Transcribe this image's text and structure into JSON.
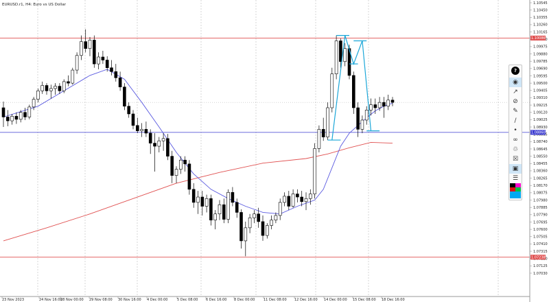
{
  "window": {
    "symbol_caption": "EURUSD.r1, H4:  Euro vs US Dollar"
  },
  "levels": [
    {
      "name": "upper-resistance",
      "price": 1.10086,
      "label": "1.10086",
      "color": "#e05050"
    },
    {
      "name": "mid-support",
      "price": 1.0886,
      "label": "1.08860",
      "color": "#3a3ad0"
    },
    {
      "name": "lower-support",
      "price": 1.07238,
      "label": "1.07238",
      "color": "#e05050"
    }
  ],
  "price_axis": {
    "labels": [
      "1.10545",
      "1.10450",
      "1.10355",
      "1.10260",
      "1.10165",
      "1.10070",
      "1.09975",
      "1.09880",
      "1.09785",
      "1.09690",
      "1.09595",
      "1.09500",
      "1.09405",
      "1.09310",
      "1.09215",
      "1.09120",
      "1.09025",
      "1.08930",
      "1.08835",
      "1.08740",
      "1.08645",
      "1.08550",
      "1.08455",
      "1.08360",
      "1.08265",
      "1.08170",
      "1.08075",
      "1.07980",
      "1.07885",
      "1.07790",
      "1.07695",
      "1.07600",
      "1.07505",
      "1.07410",
      "1.07315",
      "1.07220",
      "1.07125",
      "1.07030"
    ]
  },
  "time_axis": {
    "labels": [
      "23 Nov 2023",
      "24 Nov 16:00",
      "28 Nov 00:00",
      "29 Nov 08:00",
      "30 Nov 16:00",
      "4 Dec 00:00",
      "5 Dec 08:00",
      "6 Dec 16:00",
      "8 Dec 00:00",
      "11 Dec 08:00",
      "12 Dec 16:00",
      "14 Dec 00:00",
      "15 Dec 08:00",
      "18 Dec 16:00"
    ]
  },
  "toolbar": {
    "items": [
      "eye-icon",
      "cursor-icon",
      "no-draw-icon",
      "brush-icon",
      "pencil-icon",
      "dot-icon",
      "link-icon",
      "trash-icon",
      "trash-all-icon",
      "screenshot-icon",
      "clipboard-icon",
      "color-palette-icon"
    ],
    "active": "eye-icon"
  },
  "chart_data": {
    "type": "candlestick",
    "symbol": "EURUSD.r1",
    "timeframe": "H4",
    "y_axis_printed_range": [
      1.0703,
      1.10545
    ],
    "candles": [
      {
        "o": 1.0918,
        "h": 1.0926,
        "l": 1.0893,
        "c": 1.0906
      },
      {
        "o": 1.0906,
        "h": 1.0915,
        "l": 1.0894,
        "c": 1.0901
      },
      {
        "o": 1.0901,
        "h": 1.091,
        "l": 1.0896,
        "c": 1.0907
      },
      {
        "o": 1.0907,
        "h": 1.0912,
        "l": 1.0897,
        "c": 1.0903
      },
      {
        "o": 1.0903,
        "h": 1.0915,
        "l": 1.0899,
        "c": 1.0912
      },
      {
        "o": 1.0912,
        "h": 1.0918,
        "l": 1.0902,
        "c": 1.0906
      },
      {
        "o": 1.0906,
        "h": 1.0922,
        "l": 1.0903,
        "c": 1.0919
      },
      {
        "o": 1.0919,
        "h": 1.0932,
        "l": 1.0915,
        "c": 1.0929
      },
      {
        "o": 1.0929,
        "h": 1.0943,
        "l": 1.0925,
        "c": 1.094
      },
      {
        "o": 1.094,
        "h": 1.0952,
        "l": 1.0936,
        "c": 1.0947
      },
      {
        "o": 1.0947,
        "h": 1.095,
        "l": 1.0935,
        "c": 1.094
      },
      {
        "o": 1.094,
        "h": 1.0948,
        "l": 1.093,
        "c": 1.0943
      },
      {
        "o": 1.0943,
        "h": 1.095,
        "l": 1.0935,
        "c": 1.0946
      },
      {
        "o": 1.0946,
        "h": 1.095,
        "l": 1.0936,
        "c": 1.094
      },
      {
        "o": 1.094,
        "h": 1.0955,
        "l": 1.0937,
        "c": 1.0952
      },
      {
        "o": 1.0952,
        "h": 1.096,
        "l": 1.0946,
        "c": 1.095
      },
      {
        "o": 1.095,
        "h": 1.097,
        "l": 1.0948,
        "c": 1.0967
      },
      {
        "o": 1.0967,
        "h": 1.099,
        "l": 1.0962,
        "c": 1.0986
      },
      {
        "o": 1.0986,
        "h": 1.1012,
        "l": 1.098,
        "c": 1.1004
      },
      {
        "o": 1.1004,
        "h": 1.102,
        "l": 1.099,
        "c": 1.0995
      },
      {
        "o": 1.0995,
        "h": 1.101,
        "l": 1.0985,
        "c": 1.1006
      },
      {
        "o": 1.1006,
        "h": 1.1012,
        "l": 1.097,
        "c": 1.0975
      },
      {
        "o": 1.0975,
        "h": 1.099,
        "l": 1.0968,
        "c": 1.0984
      },
      {
        "o": 1.0984,
        "h": 1.0992,
        "l": 1.0975,
        "c": 1.098
      },
      {
        "o": 1.098,
        "h": 1.0985,
        "l": 1.0965,
        "c": 1.097
      },
      {
        "o": 1.097,
        "h": 1.098,
        "l": 1.096,
        "c": 1.0965
      },
      {
        "o": 1.0965,
        "h": 1.0975,
        "l": 1.0952,
        "c": 1.0957
      },
      {
        "o": 1.0957,
        "h": 1.0965,
        "l": 1.094,
        "c": 1.0945
      },
      {
        "o": 1.0945,
        "h": 1.095,
        "l": 1.0915,
        "c": 1.092
      },
      {
        "o": 1.092,
        "h": 1.0925,
        "l": 1.0905,
        "c": 1.091
      },
      {
        "o": 1.091,
        "h": 1.0915,
        "l": 1.089,
        "c": 1.0895
      },
      {
        "o": 1.0895,
        "h": 1.0905,
        "l": 1.0885,
        "c": 1.0888
      },
      {
        "o": 1.0888,
        "h": 1.0898,
        "l": 1.088,
        "c": 1.089
      },
      {
        "o": 1.089,
        "h": 1.09,
        "l": 1.088,
        "c": 1.0885
      },
      {
        "o": 1.0885,
        "h": 1.089,
        "l": 1.0858,
        "c": 1.0872
      },
      {
        "o": 1.0872,
        "h": 1.0885,
        "l": 1.0835,
        "c": 1.0868
      },
      {
        "o": 1.0868,
        "h": 1.088,
        "l": 1.086,
        "c": 1.0875
      },
      {
        "o": 1.0875,
        "h": 1.0885,
        "l": 1.0862,
        "c": 1.0878
      },
      {
        "o": 1.0878,
        "h": 1.0884,
        "l": 1.085,
        "c": 1.0855
      },
      {
        "o": 1.0855,
        "h": 1.0862,
        "l": 1.082,
        "c": 1.083
      },
      {
        "o": 1.083,
        "h": 1.0842,
        "l": 1.082,
        "c": 1.0838
      },
      {
        "o": 1.0838,
        "h": 1.0855,
        "l": 1.0832,
        "c": 1.085
      },
      {
        "o": 1.085,
        "h": 1.0855,
        "l": 1.0835,
        "c": 1.0845
      },
      {
        "o": 1.0845,
        "h": 1.085,
        "l": 1.0805,
        "c": 1.0812
      },
      {
        "o": 1.0812,
        "h": 1.082,
        "l": 1.0788,
        "c": 1.0795
      },
      {
        "o": 1.0795,
        "h": 1.081,
        "l": 1.078,
        "c": 1.0802
      },
      {
        "o": 1.0802,
        "h": 1.081,
        "l": 1.0778,
        "c": 1.079
      },
      {
        "o": 1.079,
        "h": 1.0805,
        "l": 1.0782,
        "c": 1.08
      },
      {
        "o": 1.08,
        "h": 1.0805,
        "l": 1.0765,
        "c": 1.0772
      },
      {
        "o": 1.0772,
        "h": 1.0785,
        "l": 1.076,
        "c": 1.078
      },
      {
        "o": 1.078,
        "h": 1.0798,
        "l": 1.0772,
        "c": 1.0792
      },
      {
        "o": 1.0792,
        "h": 1.08,
        "l": 1.0768,
        "c": 1.0773
      },
      {
        "o": 1.0773,
        "h": 1.0812,
        "l": 1.0768,
        "c": 1.0808
      },
      {
        "o": 1.0808,
        "h": 1.0815,
        "l": 1.079,
        "c": 1.0795
      },
      {
        "o": 1.0795,
        "h": 1.08,
        "l": 1.0775,
        "c": 1.0782
      },
      {
        "o": 1.0782,
        "h": 1.0786,
        "l": 1.0735,
        "c": 1.0745
      },
      {
        "o": 1.0745,
        "h": 1.077,
        "l": 1.0725,
        "c": 1.0762
      },
      {
        "o": 1.0762,
        "h": 1.078,
        "l": 1.0755,
        "c": 1.0775
      },
      {
        "o": 1.0775,
        "h": 1.0785,
        "l": 1.0768,
        "c": 1.078
      },
      {
        "o": 1.078,
        "h": 1.0788,
        "l": 1.0762,
        "c": 1.077
      },
      {
        "o": 1.077,
        "h": 1.0778,
        "l": 1.0745,
        "c": 1.0752
      },
      {
        "o": 1.0752,
        "h": 1.0768,
        "l": 1.0748,
        "c": 1.0765
      },
      {
        "o": 1.0765,
        "h": 1.0778,
        "l": 1.076,
        "c": 1.0772
      },
      {
        "o": 1.0772,
        "h": 1.0782,
        "l": 1.0768,
        "c": 1.0778
      },
      {
        "o": 1.0778,
        "h": 1.08,
        "l": 1.0772,
        "c": 1.0795
      },
      {
        "o": 1.0795,
        "h": 1.0808,
        "l": 1.079,
        "c": 1.0803
      },
      {
        "o": 1.0803,
        "h": 1.081,
        "l": 1.0785,
        "c": 1.079
      },
      {
        "o": 1.079,
        "h": 1.0812,
        "l": 1.0788,
        "c": 1.0806
      },
      {
        "o": 1.0806,
        "h": 1.0812,
        "l": 1.0795,
        "c": 1.0802
      },
      {
        "o": 1.0802,
        "h": 1.081,
        "l": 1.079,
        "c": 1.0796
      },
      {
        "o": 1.0796,
        "h": 1.0808,
        "l": 1.0785,
        "c": 1.08
      },
      {
        "o": 1.08,
        "h": 1.0812,
        "l": 1.0792,
        "c": 1.0806
      },
      {
        "o": 1.0806,
        "h": 1.0872,
        "l": 1.08,
        "c": 1.0865
      },
      {
        "o": 1.0865,
        "h": 1.0895,
        "l": 1.086,
        "c": 1.089
      },
      {
        "o": 1.089,
        "h": 1.0905,
        "l": 1.0875,
        "c": 1.088
      },
      {
        "o": 1.088,
        "h": 1.0925,
        "l": 1.0876,
        "c": 1.0918
      },
      {
        "o": 1.0918,
        "h": 1.097,
        "l": 1.0912,
        "c": 1.0962
      },
      {
        "o": 1.0962,
        "h": 1.1012,
        "l": 1.0955,
        "c": 1.1005
      },
      {
        "o": 1.1005,
        "h": 1.1008,
        "l": 1.097,
        "c": 1.0978
      },
      {
        "o": 1.0978,
        "h": 1.1002,
        "l": 1.0972,
        "c": 1.0995
      },
      {
        "o": 1.0995,
        "h": 1.1,
        "l": 1.0955,
        "c": 1.096
      },
      {
        "o": 1.096,
        "h": 1.0965,
        "l": 1.091,
        "c": 1.0918
      },
      {
        "o": 1.0918,
        "h": 1.0925,
        "l": 1.088,
        "c": 1.089
      },
      {
        "o": 1.089,
        "h": 1.0908,
        "l": 1.0885,
        "c": 1.0902
      },
      {
        "o": 1.0902,
        "h": 1.092,
        "l": 1.0896,
        "c": 1.0915
      },
      {
        "o": 1.0915,
        "h": 1.093,
        "l": 1.0908,
        "c": 1.0922
      },
      {
        "o": 1.0922,
        "h": 1.093,
        "l": 1.091,
        "c": 1.0918
      },
      {
        "o": 1.0918,
        "h": 1.0932,
        "l": 1.0914,
        "c": 1.0925
      },
      {
        "o": 1.0925,
        "h": 1.0932,
        "l": 1.0905,
        "c": 1.092
      },
      {
        "o": 1.092,
        "h": 1.0935,
        "l": 1.0915,
        "c": 1.0928
      },
      {
        "o": 1.0928,
        "h": 1.0932,
        "l": 1.092,
        "c": 1.0925
      }
    ],
    "ma_fast": [
      {
        "i": 0,
        "v": 1.0906
      },
      {
        "i": 8,
        "v": 1.092
      },
      {
        "i": 14,
        "v": 1.094
      },
      {
        "i": 20,
        "v": 1.096
      },
      {
        "i": 24,
        "v": 1.0968
      },
      {
        "i": 28,
        "v": 1.0955
      },
      {
        "i": 32,
        "v": 1.0925
      },
      {
        "i": 36,
        "v": 1.0893
      },
      {
        "i": 40,
        "v": 1.086
      },
      {
        "i": 44,
        "v": 1.0832
      },
      {
        "i": 48,
        "v": 1.0812
      },
      {
        "i": 52,
        "v": 1.08
      },
      {
        "i": 56,
        "v": 1.079
      },
      {
        "i": 60,
        "v": 1.0782
      },
      {
        "i": 64,
        "v": 1.078
      },
      {
        "i": 68,
        "v": 1.079
      },
      {
        "i": 72,
        "v": 1.0798
      },
      {
        "i": 74,
        "v": 1.0812
      },
      {
        "i": 76,
        "v": 1.084
      },
      {
        "i": 78,
        "v": 1.0868
      },
      {
        "i": 80,
        "v": 1.0885
      },
      {
        "i": 82,
        "v": 1.0895
      },
      {
        "i": 84,
        "v": 1.0905
      },
      {
        "i": 86,
        "v": 1.0914
      },
      {
        "i": 88,
        "v": 1.092
      },
      {
        "i": 90,
        "v": 1.0924
      }
    ],
    "ma_slow": [
      {
        "i": 0,
        "v": 1.0745
      },
      {
        "i": 10,
        "v": 1.0762
      },
      {
        "i": 20,
        "v": 1.078
      },
      {
        "i": 30,
        "v": 1.08
      },
      {
        "i": 40,
        "v": 1.082
      },
      {
        "i": 50,
        "v": 1.0834
      },
      {
        "i": 60,
        "v": 1.0846
      },
      {
        "i": 70,
        "v": 1.0852
      },
      {
        "i": 75,
        "v": 1.0858
      },
      {
        "i": 80,
        "v": 1.0866
      },
      {
        "i": 85,
        "v": 1.0873
      },
      {
        "i": 90,
        "v": 1.0872
      }
    ],
    "annotation_polyline": [
      {
        "i": 76,
        "v": 1.0876
      },
      {
        "i": 79,
        "v": 1.1012
      },
      {
        "i": 81,
        "v": 1.0975
      },
      {
        "i": 83,
        "v": 1.1005
      },
      {
        "i": 85,
        "v": 1.0888
      }
    ],
    "annotation_ticks": [
      {
        "i0": 77,
        "i1": 80,
        "v": 1.1012
      },
      {
        "i0": 81,
        "i1": 84,
        "v": 1.1005
      },
      {
        "i0": 75,
        "i1": 78,
        "v": 1.0876
      },
      {
        "i0": 84,
        "i1": 87,
        "v": 1.0888
      },
      {
        "i0": 80,
        "i1": 82,
        "v": 1.0975
      }
    ]
  }
}
